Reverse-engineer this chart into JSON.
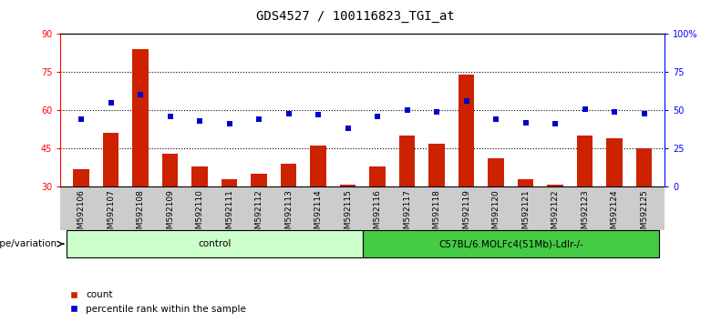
{
  "title": "GDS4527 / 100116823_TGI_at",
  "samples": [
    "GSM592106",
    "GSM592107",
    "GSM592108",
    "GSM592109",
    "GSM592110",
    "GSM592111",
    "GSM592112",
    "GSM592113",
    "GSM592114",
    "GSM592115",
    "GSM592116",
    "GSM592117",
    "GSM592118",
    "GSM592119",
    "GSM592120",
    "GSM592121",
    "GSM592122",
    "GSM592123",
    "GSM592124",
    "GSM592125"
  ],
  "bar_values": [
    37.0,
    51.0,
    84.0,
    43.0,
    38.0,
    33.0,
    35.0,
    39.0,
    46.0,
    31.0,
    38.0,
    50.0,
    47.0,
    74.0,
    41.0,
    33.0,
    31.0,
    50.0,
    49.0,
    45.0
  ],
  "percentile_values_pct": [
    44.0,
    55.0,
    60.0,
    46.0,
    43.0,
    41.0,
    44.0,
    48.0,
    47.0,
    38.0,
    46.0,
    50.0,
    49.0,
    56.0,
    44.0,
    42.0,
    41.0,
    51.0,
    49.0,
    48.0
  ],
  "bar_color": "#cc2200",
  "dot_color": "#0000cc",
  "ylim_left": [
    30,
    90
  ],
  "ylim_right": [
    0,
    100
  ],
  "yticks_left": [
    30,
    45,
    60,
    75,
    90
  ],
  "yticks_right": [
    0,
    25,
    50,
    75,
    100
  ],
  "ytick_labels_right": [
    "0",
    "25",
    "50",
    "75",
    "100%"
  ],
  "hlines": [
    45,
    60,
    75
  ],
  "groups": [
    {
      "label": "control",
      "start": 0,
      "end": 9,
      "color": "#ccffcc"
    },
    {
      "label": "C57BL/6.MOLFc4(51Mb)-Ldlr-/-",
      "start": 10,
      "end": 19,
      "color": "#44cc44"
    }
  ],
  "group_row_label": "genotype/variation",
  "legend_count_label": "count",
  "legend_pct_label": "percentile rank within the sample",
  "bar_width": 0.55,
  "background_color": "#ffffff",
  "plot_bg_color": "#ffffff",
  "tick_label_area_color": "#cccccc",
  "title_fontsize": 10
}
